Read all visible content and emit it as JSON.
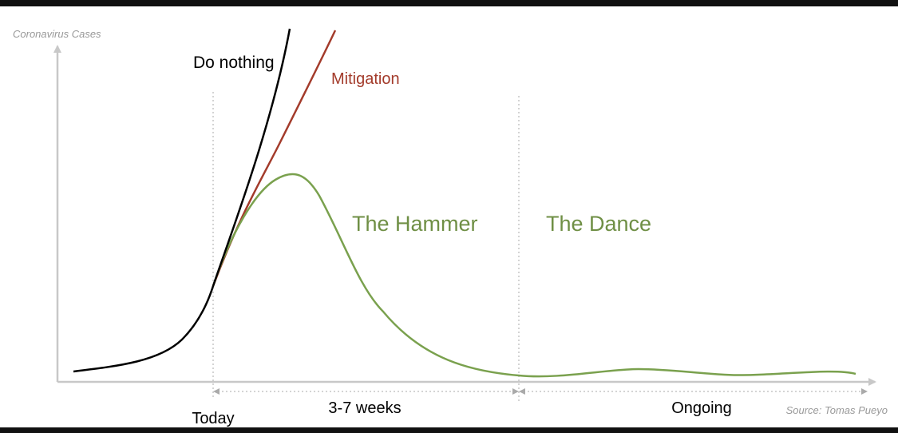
{
  "axis": {
    "y_label": "Coronavirus Cases"
  },
  "curves": {
    "do_nothing": "Do nothing",
    "mitigation": "Mitigation"
  },
  "phases": {
    "hammer": "The Hammer",
    "dance": "The Dance"
  },
  "timeline": {
    "today": "Today",
    "hammer_duration": "3-7 weeks",
    "dance_duration": "Ongoing"
  },
  "source": "Source: Tomas Pueyo"
}
